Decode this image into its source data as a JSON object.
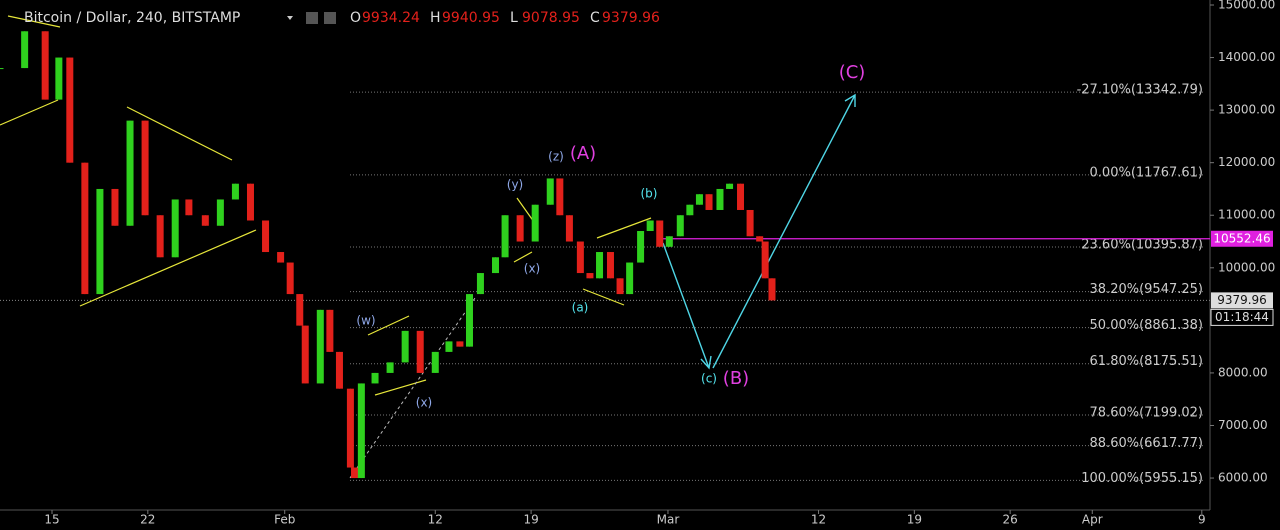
{
  "chart_data": {
    "type": "candlestick",
    "title": "Bitcoin / Dollar, 240, BITSTAMP",
    "ohlc": [
      {
        "key": "O",
        "label": "9934.24"
      },
      {
        "key": "H",
        "label": "9940.95"
      },
      {
        "key": "L",
        "label": "9078.95"
      },
      {
        "key": "C",
        "label": "9379.96"
      }
    ],
    "up_color": "#2fd11e",
    "down_color": "#e3211b",
    "x": [
      10.2,
      12,
      13.5,
      14.5,
      15.3,
      16.4,
      17.5,
      18.6,
      19.7,
      20.8,
      21.9,
      23,
      24,
      25.2,
      26.3,
      27.4,
      28.5,
      29.6,
      30.7,
      31.4,
      32.1,
      32.5,
      33.6,
      34.3,
      35,
      35.8,
      36.1,
      36.6,
      37.6,
      38.7,
      39.8,
      40.9,
      42,
      43,
      43.8,
      44.5,
      45.3,
      46.4,
      47.1,
      48.2,
      49.3,
      50.4,
      51.1,
      51.8,
      52.6,
      53.3,
      54,
      54.8,
      55.5,
      56.2,
      57,
      57.7,
      58.4,
      59.1,
      59.9,
      60.6,
      61.3,
      62,
      62.8,
      63.5,
      64.3,
      65,
      65.7,
      66.1,
      66.6
    ],
    "close": [
      13800,
      14500,
      13200,
      14000,
      12000,
      9500,
      11500,
      10800,
      12800,
      11000,
      10200,
      11300,
      11000,
      10800,
      11300,
      11600,
      10900,
      10300,
      10100,
      9500,
      8900,
      7800,
      9200,
      8400,
      7700,
      6200,
      6000,
      7800,
      8000,
      8200,
      8800,
      8000,
      8400,
      8600,
      8500,
      9500,
      9900,
      10200,
      11000,
      10500,
      11200,
      11700,
      11000,
      10500,
      9900,
      9800,
      10300,
      9800,
      9500,
      10100,
      10700,
      10900,
      10400,
      10600,
      11000,
      11200,
      11400,
      11100,
      11500,
      11600,
      11100,
      10600,
      10500,
      9800,
      9380
    ],
    "xlim": [
      10.2,
      98.6
    ],
    "ylim": [
      5392,
      15095
    ],
    "xticks": [
      {
        "value": 14,
        "label": "15"
      },
      {
        "value": 21,
        "label": "22"
      },
      {
        "value": 31,
        "label": "Feb"
      },
      {
        "value": 42,
        "label": "12"
      },
      {
        "value": 49,
        "label": "19"
      },
      {
        "value": 59,
        "label": "Mar"
      },
      {
        "value": 70,
        "label": "12"
      },
      {
        "value": 77,
        "label": "19"
      },
      {
        "value": 84,
        "label": "26"
      },
      {
        "value": 90,
        "label": "Apr"
      },
      {
        "value": 98,
        "label": "9"
      }
    ],
    "yticks": [
      {
        "value": 6000,
        "label": "6000.00"
      },
      {
        "value": 7000,
        "label": "7000.00"
      },
      {
        "value": 8000,
        "label": "8000.00"
      },
      {
        "value": 9000,
        "label": "9000.00"
      },
      {
        "value": 10000,
        "label": "10000.00"
      },
      {
        "value": 11000,
        "label": "11000.00"
      },
      {
        "value": 12000,
        "label": "12000.00"
      },
      {
        "value": 13000,
        "label": "13000.00"
      },
      {
        "value": 14000,
        "label": "14000.00"
      },
      {
        "value": 15000,
        "label": "15000.00"
      }
    ],
    "fib_levels": [
      {
        "price": 13342.79,
        "label": "-27.10%(13342.79)"
      },
      {
        "price": 11767.61,
        "label": "0.00%(11767.61)"
      },
      {
        "price": 10395.87,
        "label": "23.60%(10395.87)"
      },
      {
        "price": 9547.25,
        "label": "38.20%(9547.25)"
      },
      {
        "price": 8861.38,
        "label": "50.00%(8861.38)"
      },
      {
        "price": 8175.51,
        "label": "61.80%(8175.51)"
      },
      {
        "price": 7199.02,
        "label": "78.60%(7199.02)"
      },
      {
        "price": 6617.77,
        "label": "88.60%(6617.77)"
      },
      {
        "price": 5955.15,
        "label": "100.00%(5955.15)"
      }
    ],
    "alert_line": {
      "value": 10552.46,
      "label": "10552.46",
      "color": "#e020e0"
    },
    "last_price": {
      "value": 9379.96,
      "label": "9379.96"
    },
    "countdown": "01:18:44",
    "waves": [
      "(w)",
      "(x)",
      "(y)",
      "(x)",
      "(z)",
      "(A)",
      "(a)",
      "(b)",
      "(c)",
      "(B)",
      "(C)"
    ]
  }
}
